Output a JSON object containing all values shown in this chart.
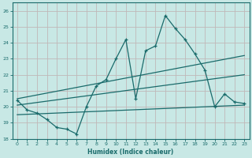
{
  "xlabel": "Humidex (Indice chaleur)",
  "xlim": [
    -0.5,
    23.5
  ],
  "ylim": [
    18,
    26.5
  ],
  "yticks": [
    18,
    19,
    20,
    21,
    22,
    23,
    24,
    25,
    26
  ],
  "xticks": [
    0,
    1,
    2,
    3,
    4,
    5,
    6,
    7,
    8,
    9,
    10,
    11,
    12,
    13,
    14,
    15,
    16,
    17,
    18,
    19,
    20,
    21,
    22,
    23
  ],
  "bg_color": "#c8e8e5",
  "line_color": "#1a6b6b",
  "grid_color": "#c0b8b8",
  "main_line_x": [
    0,
    1,
    2,
    3,
    4,
    5,
    6,
    7,
    8,
    9,
    10,
    11,
    12,
    13,
    14,
    15,
    16,
    17,
    18,
    19,
    20,
    21,
    22,
    23
  ],
  "main_line_y": [
    20.4,
    19.8,
    19.6,
    19.2,
    18.7,
    18.6,
    18.3,
    20.0,
    21.3,
    21.7,
    23.0,
    24.2,
    20.5,
    23.5,
    23.8,
    25.7,
    24.9,
    24.2,
    23.3,
    22.3,
    20.0,
    20.8,
    20.3,
    20.2
  ],
  "upper_line_x": [
    0,
    23
  ],
  "upper_line_y": [
    20.5,
    23.2
  ],
  "lower_line_x": [
    0,
    23
  ],
  "lower_line_y": [
    19.5,
    20.1
  ],
  "mid_line_x": [
    0,
    23
  ],
  "mid_line_y": [
    20.1,
    22.0
  ]
}
